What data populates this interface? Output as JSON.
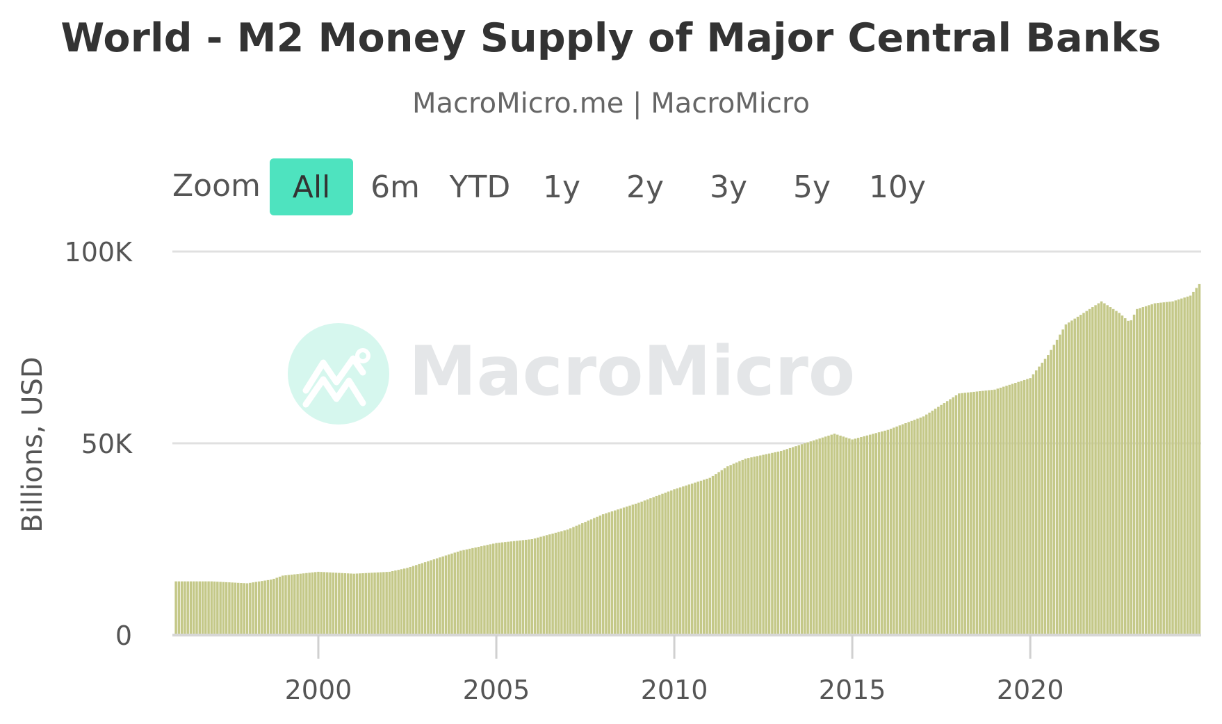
{
  "header": {
    "title": "World - M2 Money Supply of Major Central Banks",
    "subtitle": "MacroMicro.me | MacroMicro"
  },
  "zoom": {
    "label": "Zoom",
    "buttons": [
      "All",
      "6m",
      "YTD",
      "1y",
      "2y",
      "3y",
      "5y",
      "10y"
    ],
    "selected": "All"
  },
  "watermark": {
    "text": "MacroMicro"
  },
  "colors": {
    "bar": "#c4c888",
    "bar_edge": "#b8bc78",
    "selected_button": "#4ee3bf",
    "grid": "#e0e0e0",
    "watermark_text": "#e4e6e8",
    "watermark_circle": "#d6f7ee"
  },
  "chart_data": {
    "type": "bar",
    "title": "World - M2 Money Supply of Major Central Banks",
    "ylabel": "Billions, USD",
    "xlabel": "",
    "ylim": [
      0,
      100000
    ],
    "yticks": [
      0,
      50000,
      100000
    ],
    "ytick_labels": [
      "0",
      "50K",
      "100K"
    ],
    "xticks": [
      2000,
      2005,
      2010,
      2015,
      2020
    ],
    "xlim": [
      1995.9,
      2024.8
    ],
    "grid": true,
    "series": [
      {
        "name": "M2 Money Supply of Major Central Banks",
        "points": [
          [
            1996.0,
            14000
          ],
          [
            1997.0,
            14000
          ],
          [
            1998.0,
            13500
          ],
          [
            1998.7,
            14500
          ],
          [
            1999.0,
            15500
          ],
          [
            2000.0,
            16500
          ],
          [
            2001.0,
            16000
          ],
          [
            2002.0,
            16500
          ],
          [
            2002.5,
            17500
          ],
          [
            2003.0,
            19000
          ],
          [
            2004.0,
            22000
          ],
          [
            2005.0,
            24000
          ],
          [
            2006.0,
            25000
          ],
          [
            2007.0,
            27500
          ],
          [
            2008.0,
            31500
          ],
          [
            2008.5,
            33000
          ],
          [
            2009.0,
            34500
          ],
          [
            2010.0,
            38000
          ],
          [
            2011.0,
            41000
          ],
          [
            2011.5,
            44000
          ],
          [
            2012.0,
            46000
          ],
          [
            2013.0,
            48000
          ],
          [
            2013.5,
            49500
          ],
          [
            2014.0,
            51000
          ],
          [
            2014.5,
            52500
          ],
          [
            2015.0,
            51000
          ],
          [
            2016.0,
            53500
          ],
          [
            2017.0,
            57000
          ],
          [
            2018.0,
            63000
          ],
          [
            2018.5,
            63500
          ],
          [
            2019.0,
            64000
          ],
          [
            2020.0,
            67000
          ],
          [
            2020.5,
            73000
          ],
          [
            2021.0,
            81000
          ],
          [
            2021.5,
            84000
          ],
          [
            2022.0,
            87000
          ],
          [
            2022.5,
            84000
          ],
          [
            2022.8,
            81500
          ],
          [
            2023.0,
            85000
          ],
          [
            2023.5,
            86500
          ],
          [
            2024.0,
            87000
          ],
          [
            2024.5,
            88500
          ],
          [
            2024.75,
            91500
          ]
        ]
      }
    ]
  }
}
